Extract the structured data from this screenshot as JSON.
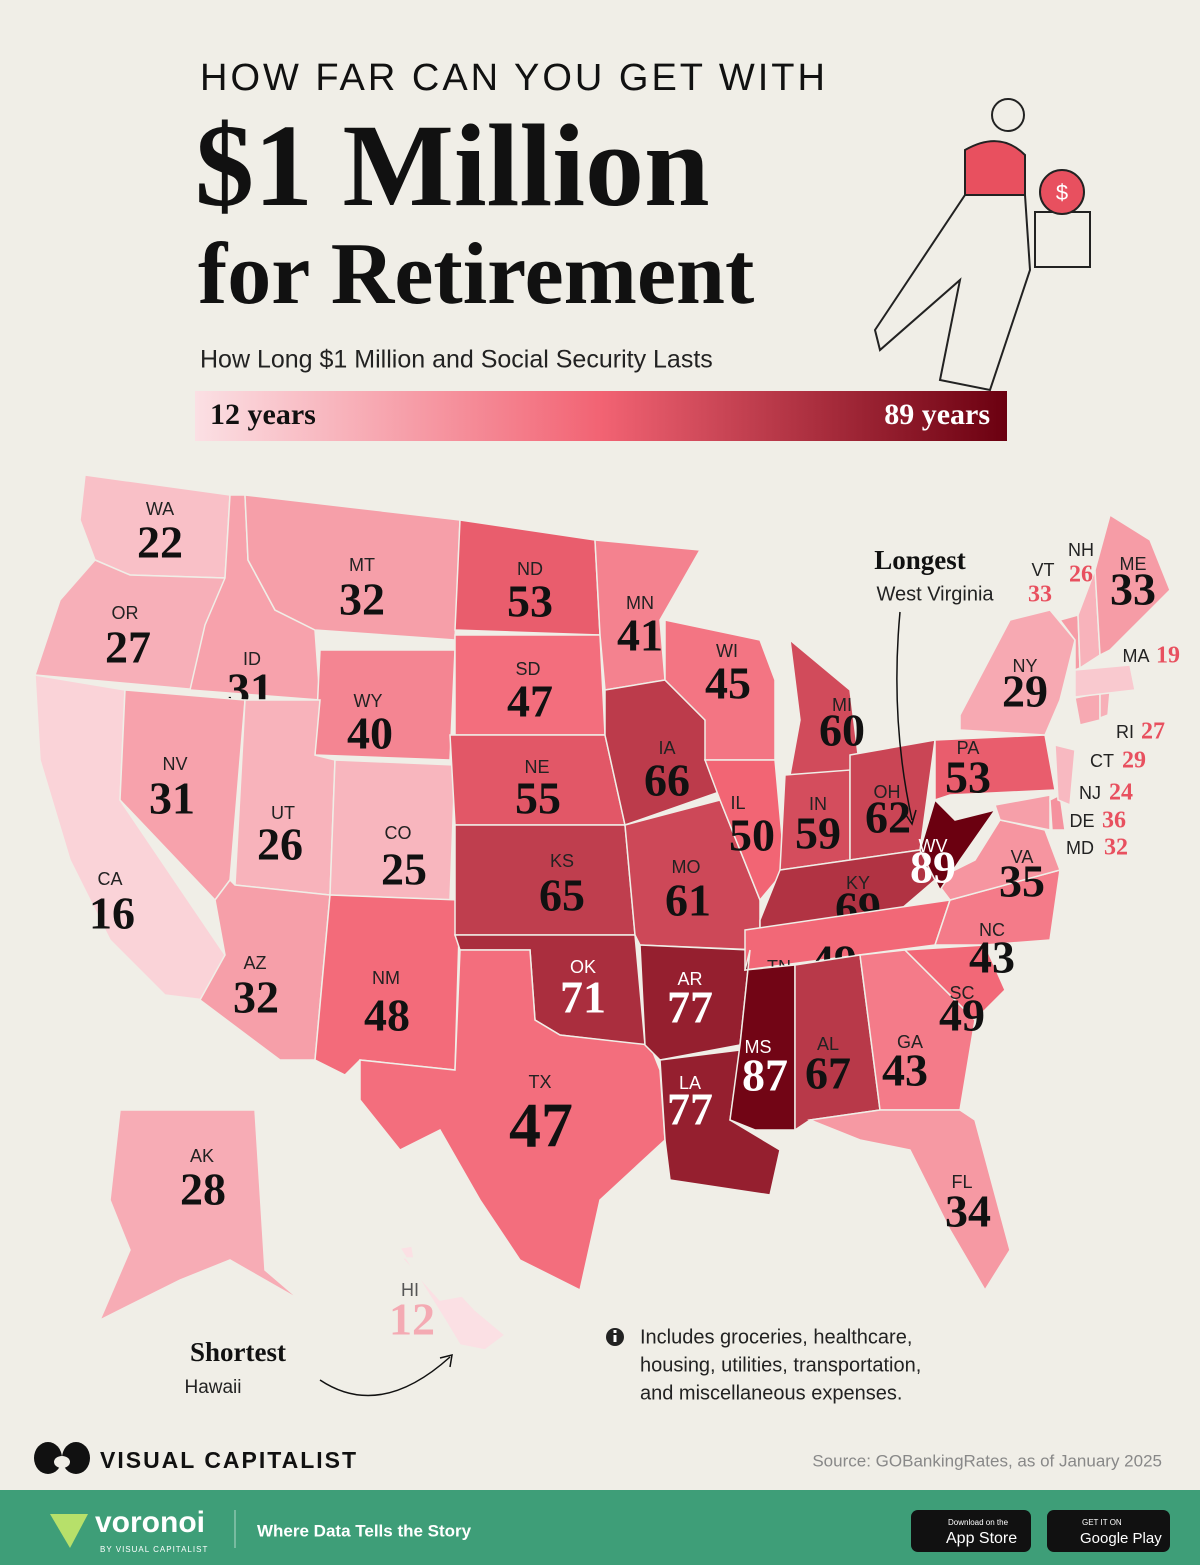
{
  "header": {
    "kicker": "HOW FAR CAN YOU GET WITH",
    "title_line1": "$1 Million",
    "title_line2": "for Retirement",
    "subtitle": "How Long $1 Million and Social Security Lasts"
  },
  "legend": {
    "min": {
      "value": 12,
      "label": "12 years"
    },
    "max": {
      "value": 89,
      "label": "89 years"
    },
    "colors": [
      "#fbe0e4",
      "#f26373",
      "#6b0010"
    ]
  },
  "states": [
    {
      "abbr": "WA",
      "value": 22
    },
    {
      "abbr": "OR",
      "value": 27
    },
    {
      "abbr": "CA",
      "value": 16
    },
    {
      "abbr": "ID",
      "value": 31
    },
    {
      "abbr": "NV",
      "value": 31
    },
    {
      "abbr": "MT",
      "value": 32
    },
    {
      "abbr": "WY",
      "value": 40
    },
    {
      "abbr": "UT",
      "value": 26
    },
    {
      "abbr": "AZ",
      "value": 32
    },
    {
      "abbr": "CO",
      "value": 25
    },
    {
      "abbr": "NM",
      "value": 48
    },
    {
      "abbr": "ND",
      "value": 53
    },
    {
      "abbr": "SD",
      "value": 47
    },
    {
      "abbr": "NE",
      "value": 55
    },
    {
      "abbr": "KS",
      "value": 65
    },
    {
      "abbr": "OK",
      "value": 71
    },
    {
      "abbr": "TX",
      "value": 47
    },
    {
      "abbr": "MN",
      "value": 41
    },
    {
      "abbr": "IA",
      "value": 66
    },
    {
      "abbr": "MO",
      "value": 61
    },
    {
      "abbr": "AR",
      "value": 77
    },
    {
      "abbr": "LA",
      "value": 77
    },
    {
      "abbr": "WI",
      "value": 45
    },
    {
      "abbr": "IL",
      "value": 50
    },
    {
      "abbr": "MI",
      "value": 60
    },
    {
      "abbr": "IN",
      "value": 59
    },
    {
      "abbr": "OH",
      "value": 62
    },
    {
      "abbr": "KY",
      "value": 69
    },
    {
      "abbr": "TN",
      "value": 49
    },
    {
      "abbr": "MS",
      "value": 87
    },
    {
      "abbr": "AL",
      "value": 67
    },
    {
      "abbr": "GA",
      "value": 43
    },
    {
      "abbr": "FL",
      "value": 34
    },
    {
      "abbr": "SC",
      "value": 49
    },
    {
      "abbr": "NC",
      "value": 43
    },
    {
      "abbr": "VA",
      "value": 35
    },
    {
      "abbr": "WV",
      "value": 89
    },
    {
      "abbr": "PA",
      "value": 53
    },
    {
      "abbr": "NY",
      "value": 29
    },
    {
      "abbr": "MD",
      "value": 32
    },
    {
      "abbr": "DE",
      "value": 36
    },
    {
      "abbr": "NJ",
      "value": 24
    },
    {
      "abbr": "CT",
      "value": 29
    },
    {
      "abbr": "RI",
      "value": 27
    },
    {
      "abbr": "MA",
      "value": 19
    },
    {
      "abbr": "VT",
      "value": 33
    },
    {
      "abbr": "NH",
      "value": 26
    },
    {
      "abbr": "ME",
      "value": 33
    },
    {
      "abbr": "AK",
      "value": 28
    },
    {
      "abbr": "HI",
      "value": 12
    }
  ],
  "callouts": {
    "longest": {
      "title": "Longest",
      "name": "West Virginia"
    },
    "shortest": {
      "title": "Shortest",
      "name": "Hawaii"
    }
  },
  "note": [
    "Includes groceries, healthcare,",
    "housing, utilities, transportation,",
    "and miscellaneous expenses."
  ],
  "brand": "VISUAL CAPITALIST",
  "source": "Source: GOBankingRates, as of January 2025",
  "footer": {
    "brand": "voronoi",
    "byline": "BY VISUAL CAPITALIST",
    "tagline": "Where Data Tells the Story",
    "app_store_small": "Download on the",
    "app_store": "App Store",
    "google_small": "GET IT ON",
    "google": "Google Play"
  }
}
